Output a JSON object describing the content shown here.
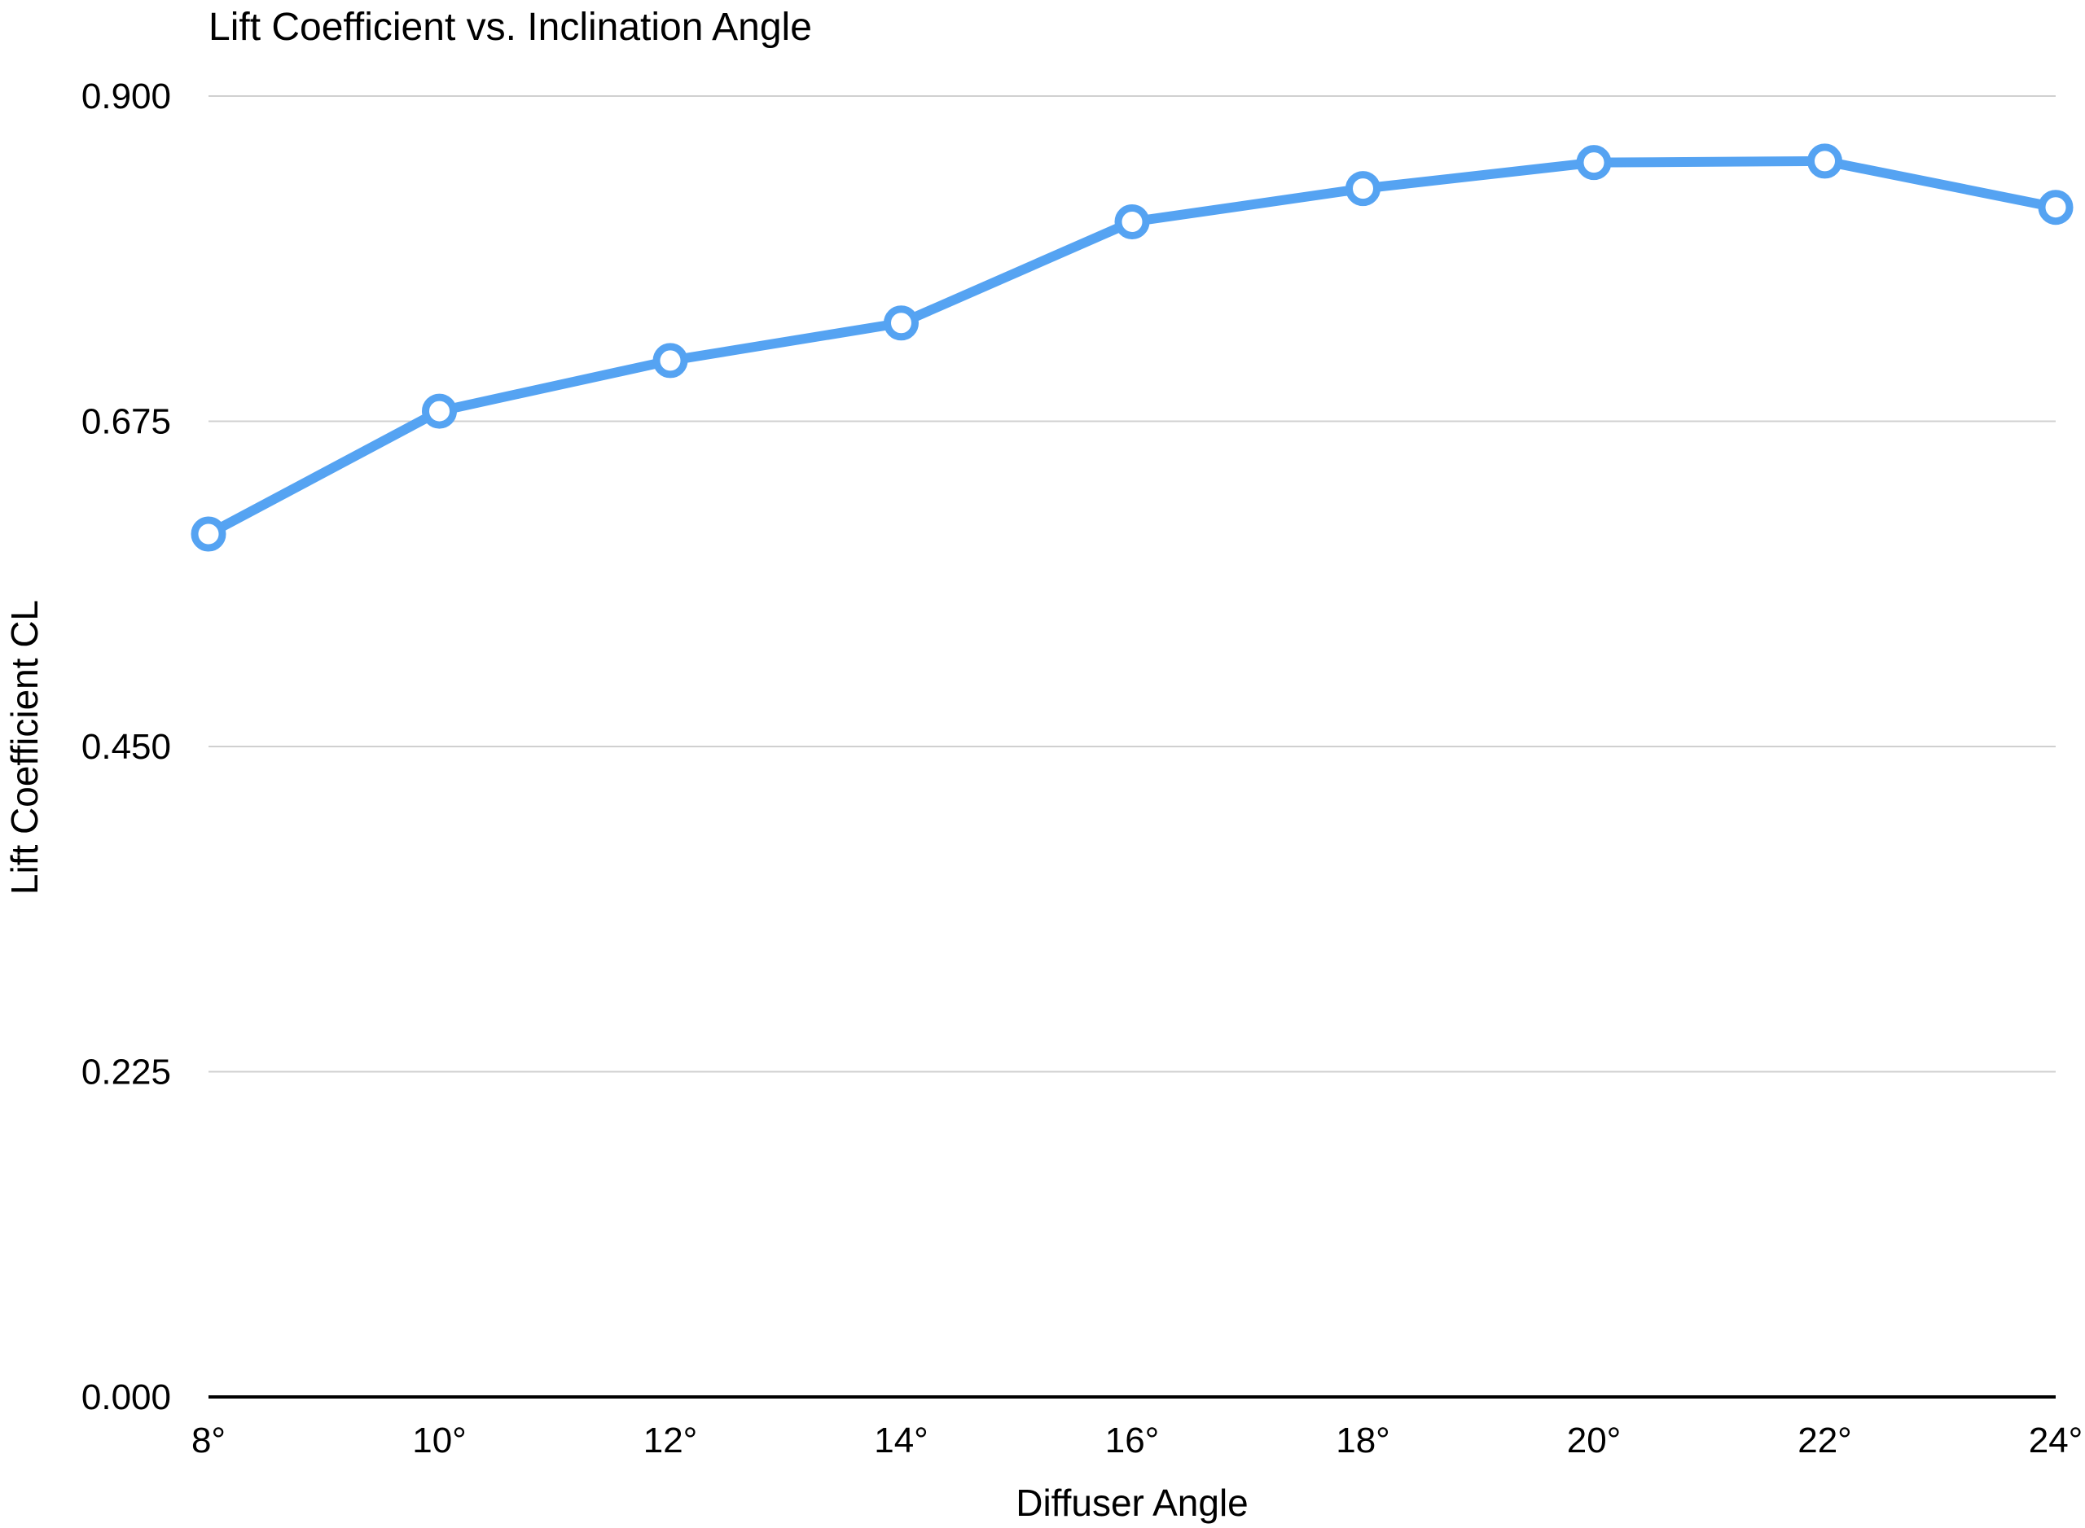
{
  "chart_data": {
    "type": "line",
    "title": "Lift Coefficient vs. Inclination Angle",
    "xlabel": "Diffuser Angle",
    "ylabel": "Lift Coefficient CL",
    "categories": [
      "8°",
      "10°",
      "12°",
      "14°",
      "16°",
      "18°",
      "20°",
      "22°",
      "24°"
    ],
    "series": [
      {
        "values": [
          0.597,
          0.682,
          0.717,
          0.743,
          0.813,
          0.836,
          0.854,
          0.855,
          0.823
        ]
      }
    ],
    "ylim": [
      0,
      0.9
    ],
    "yticks": [
      "0.000",
      "0.225",
      "0.450",
      "0.675",
      "0.900"
    ],
    "grid": true,
    "legend": "none",
    "colors": {
      "line": "#55a3f2",
      "marker_fill": "#ffffff",
      "grid": "#d0d0d0",
      "axis": "#000000"
    }
  }
}
